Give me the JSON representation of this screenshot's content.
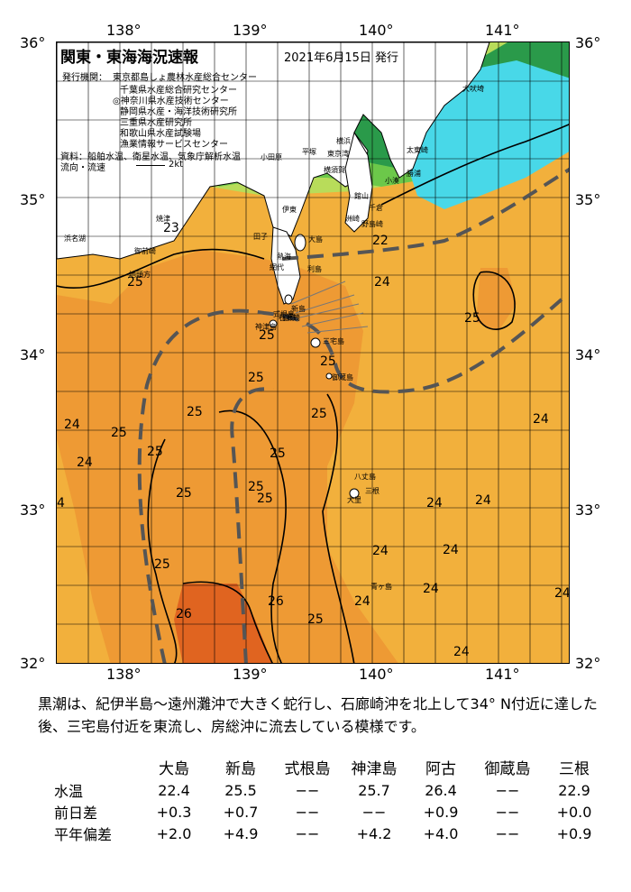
{
  "map": {
    "title": "関東・東海海況速報",
    "issue_date": "2021年6月15日 発行",
    "agencies_label": "発行機関：",
    "agencies": [
      "東京都島しょ農林水産総合センター",
      "千葉県水産総合研究センター",
      "◎神奈川県水産技術センター",
      "静岡県水産・海洋技術研究所",
      "三重県水産研究所",
      "和歌山県水産試験場",
      "漁業情報サービスセンター"
    ],
    "sources": "資料：船舶水温、衛星水温、気象庁解析水温",
    "flow_label": "流向・流速",
    "flow_scale": "2kt",
    "lon_labels": [
      "138°",
      "139°",
      "140°",
      "141°"
    ],
    "lat_labels": [
      "36°",
      "35°",
      "34°",
      "33°",
      "32°"
    ],
    "places": [
      "大吠埼",
      "太東崎",
      "勝浦",
      "小湊",
      "洲崎",
      "館山",
      "千倉",
      "野島崎",
      "東京湾",
      "横須賀",
      "横浜",
      "平塚",
      "小田原",
      "稲取",
      "伊東",
      "石廊崎",
      "田子",
      "御前崎",
      "焼津",
      "地頭方",
      "浜名湖",
      "大島",
      "利島",
      "新島",
      "式根島",
      "神津島",
      "三宅島",
      "御蔵島",
      "八丈島",
      "三根",
      "大里",
      "青ヶ島",
      "熱海",
      "網代"
    ],
    "isotherms": [
      {
        "label": "23"
      },
      {
        "label": "22"
      },
      {
        "label": "25"
      },
      {
        "label": "24"
      },
      {
        "label": "25"
      },
      {
        "label": "25"
      },
      {
        "label": "25"
      },
      {
        "label": "25"
      },
      {
        "label": "25"
      },
      {
        "label": "25"
      },
      {
        "label": "24"
      },
      {
        "label": "25"
      },
      {
        "label": "24"
      },
      {
        "label": "25"
      },
      {
        "label": "25"
      },
      {
        "label": "25"
      },
      {
        "label": "24"
      },
      {
        "label": "25"
      },
      {
        "label": "25"
      },
      {
        "label": "4"
      },
      {
        "label": "24"
      },
      {
        "label": "24"
      },
      {
        "label": "24"
      },
      {
        "label": "24"
      },
      {
        "label": "24"
      },
      {
        "label": "25"
      },
      {
        "label": "26"
      },
      {
        "label": "26"
      },
      {
        "label": "25"
      },
      {
        "label": "24"
      },
      {
        "label": "24"
      },
      {
        "label": "24"
      }
    ]
  },
  "description": "黒潮は、紀伊半島～遠州灘沖で大きく蛇行し、石廊崎沖を北上して34° N付近に達した後、三宅島付近を東流し、房総沖に流去している模様です。",
  "table": {
    "columns": [
      "大島",
      "新島",
      "式根島",
      "神津島",
      "阿古",
      "御蔵島",
      "三根"
    ],
    "rows": [
      {
        "label": "水温",
        "values": [
          "22.4",
          "25.5",
          "−−",
          "25.7",
          "26.4",
          "−−",
          "22.9"
        ]
      },
      {
        "label": "前日差",
        "values": [
          "+0.3",
          "+0.7",
          "−−",
          "−−",
          "+0.9",
          "−−",
          "+0.0"
        ]
      },
      {
        "label": "平年偏差",
        "values": [
          "+2.0",
          "+4.9",
          "−−",
          "+4.2",
          "+4.0",
          "−−",
          "+0.9"
        ]
      }
    ]
  },
  "colors": {
    "temp_21": "#2a9a4a",
    "temp_22": "#6cc84a",
    "temp_23": "#b8dc5a",
    "temp_24": "#f4b43c",
    "temp_25": "#ee9a34",
    "temp_26": "#e06420",
    "cold_bay": "#48d8e8",
    "land": "#ffffff",
    "kuroshio_path": "#555555"
  }
}
